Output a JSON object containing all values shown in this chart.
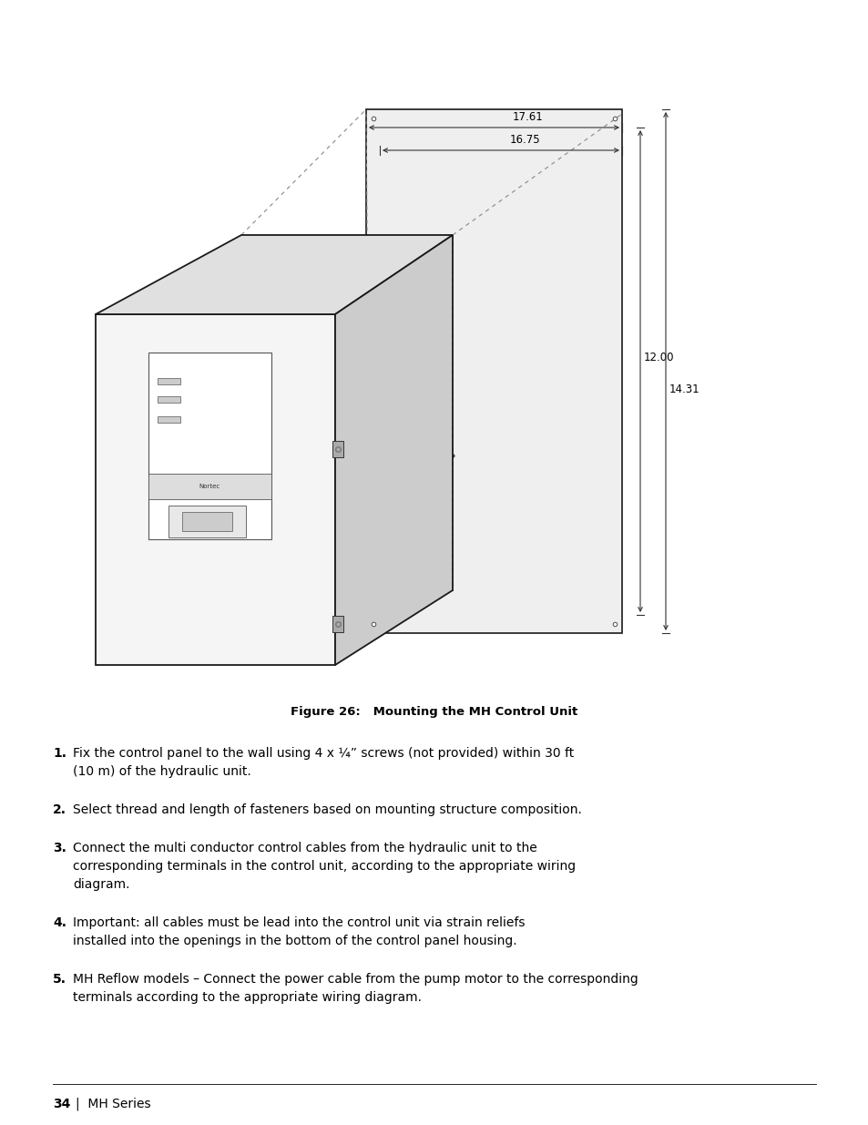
{
  "title": "Mounting the MH Control Unit",
  "figure_caption": "Figure 26:   Mounting the MH Control Unit",
  "page_footer": "34  |  MH Series",
  "items": [
    {
      "num": "1.",
      "text": "Fix the control panel to the wall using 4 x ¼” screws (not provided) within 30 ft (10 m) of the hydraulic unit."
    },
    {
      "num": "2.",
      "text": "Select thread and length of fasteners based on mounting structure composition."
    },
    {
      "num": "3.",
      "text": "Connect the multi conductor control cables from the hydraulic unit to the corresponding terminals in the control unit, according to the appropriate wiring diagram."
    },
    {
      "num": "4.",
      "text": "Important: all cables must be lead into the control unit via strain reliefs installed into the openings in the bottom of the control panel housing."
    },
    {
      "num": "5.",
      "text": "MH Reflow models – Connect the power cable from the pump motor to the corresponding terminals according to the appropriate wiring diagram."
    }
  ],
  "dim_17_61": "17.61",
  "dim_16_75": "16.75",
  "dim_12_00": "12.00",
  "dim_14_31": "14.31",
  "bg_color": "#ffffff",
  "text_color": "#000000",
  "line_color": "#1a1a1a",
  "dim_line_color": "#333333",
  "face_light": "#f5f5f5",
  "face_mid": "#e0e0e0",
  "face_dark": "#cccccc",
  "face_darker": "#b8b8b8",
  "wall_face": "#efefef"
}
